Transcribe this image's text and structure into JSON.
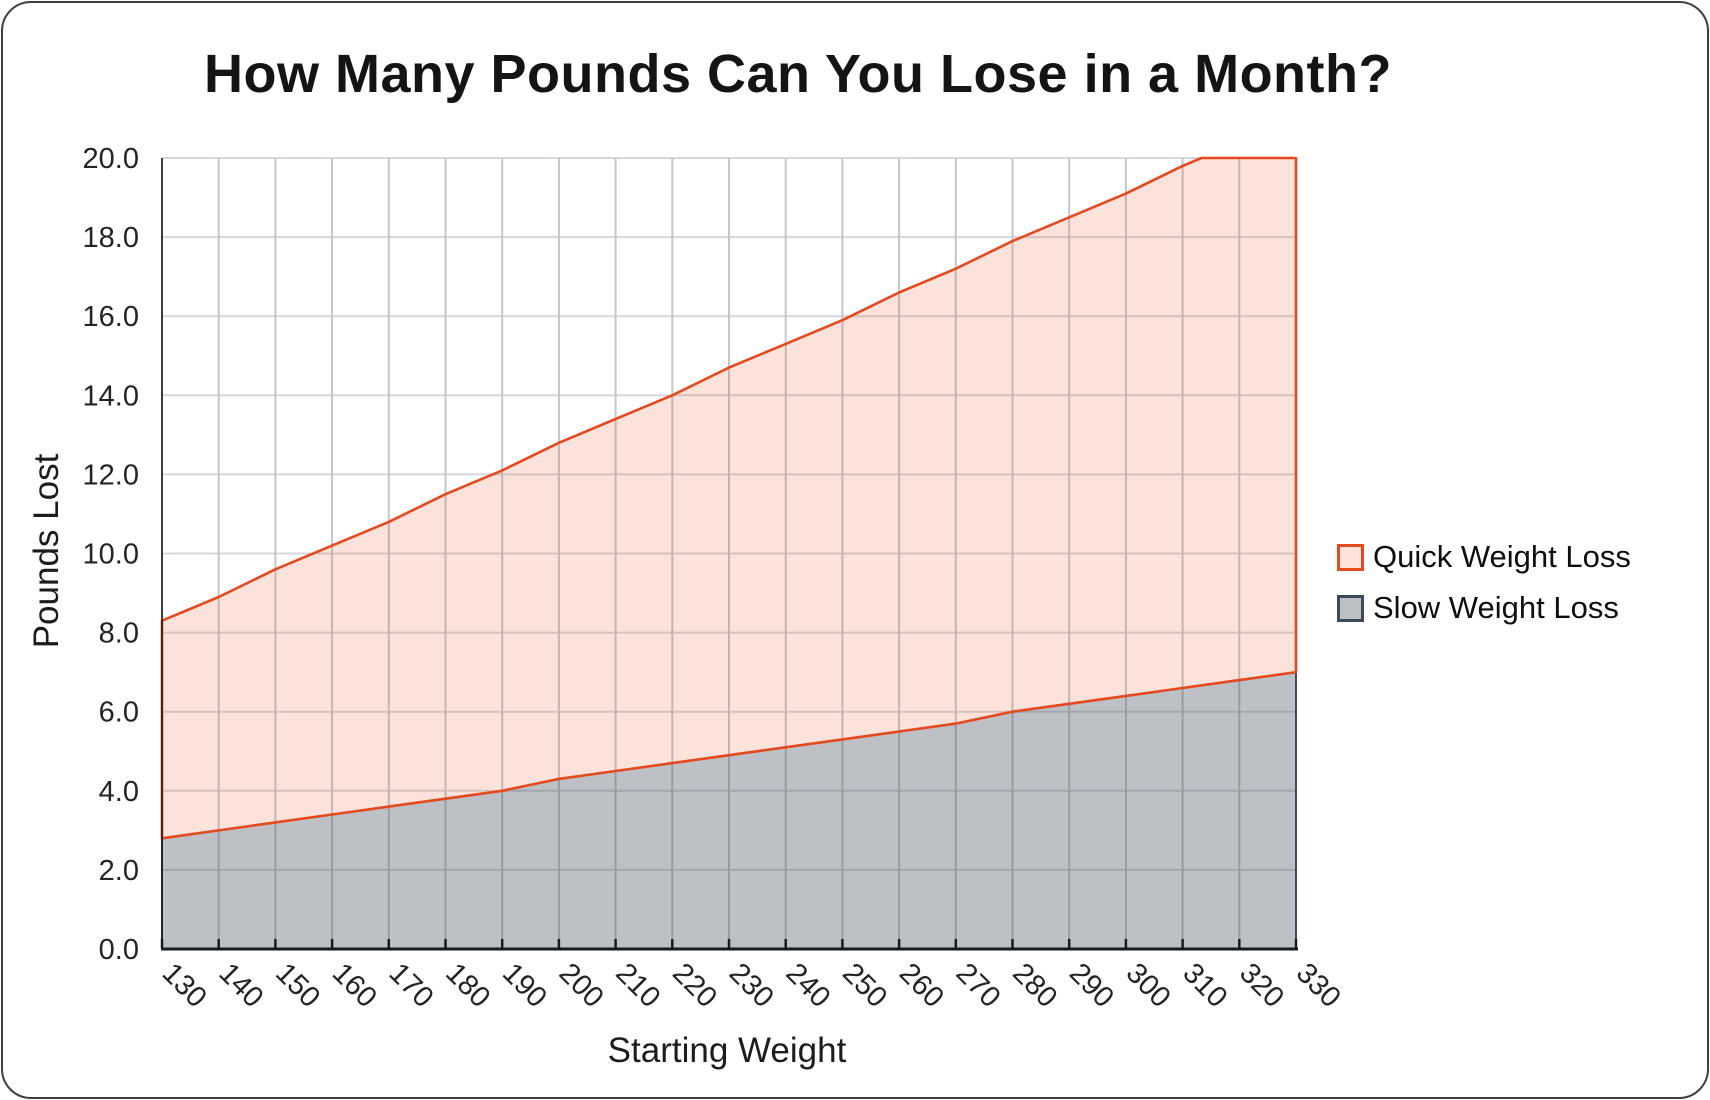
{
  "chart_data": {
    "type": "area",
    "title": "How Many Pounds Can You Lose in a Month?",
    "xlabel": "Starting Weight",
    "ylabel": "Pounds Lost",
    "x": [
      130,
      140,
      150,
      160,
      170,
      180,
      190,
      200,
      210,
      220,
      230,
      240,
      250,
      260,
      270,
      280,
      290,
      300,
      310,
      320,
      330
    ],
    "xtick_labels": [
      "130",
      "140",
      "150",
      "160",
      "170",
      "180",
      "190",
      "200",
      "210",
      "220",
      "230",
      "240",
      "250",
      "260",
      "270",
      "280",
      "290",
      "300",
      "310",
      "320",
      "330"
    ],
    "yticks": [
      0,
      2,
      4,
      6,
      8,
      10,
      12,
      14,
      16,
      18,
      20
    ],
    "ytick_labels": [
      "0.0",
      "2.0",
      "4.0",
      "6.0",
      "8.0",
      "10.0",
      "12.0",
      "14.0",
      "16.0",
      "18.0",
      "20.0"
    ],
    "ylim": [
      0,
      20
    ],
    "grid": true,
    "legend_position": "right",
    "series": [
      {
        "name": "Quick Weight Loss",
        "render": "band-above-slow-clipped-at-ymax",
        "values": [
          8.3,
          8.9,
          9.6,
          10.2,
          10.8,
          11.5,
          12.1,
          12.8,
          13.4,
          14.0,
          14.7,
          15.3,
          15.9,
          16.6,
          17.2,
          17.9,
          18.5,
          19.1,
          19.8,
          20.4,
          21.0
        ],
        "line_color": "#E5491F",
        "fill_color": "rgba(229,73,31,0.16)"
      },
      {
        "name": "Slow Weight Loss",
        "render": "area-from-zero",
        "values": [
          2.8,
          3.0,
          3.2,
          3.4,
          3.6,
          3.8,
          4.0,
          4.3,
          4.5,
          4.7,
          4.9,
          5.1,
          5.3,
          5.5,
          5.7,
          6.0,
          6.2,
          6.4,
          6.6,
          6.8,
          7.0
        ],
        "line_color": "#3E4A59",
        "fill_color": "rgba(62,74,89,0.34)"
      }
    ],
    "colors": {
      "grid_vertical": "#C3C7CC",
      "grid_horizontal": "#D4D8DC",
      "axis": "#1A1A1A",
      "tick_label": "#242424"
    }
  }
}
